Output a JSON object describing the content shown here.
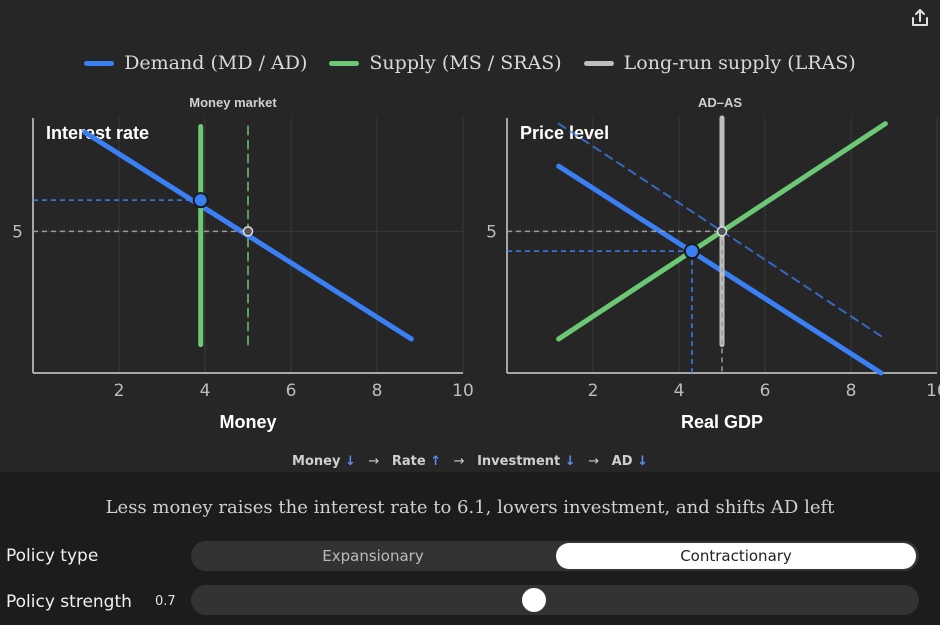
{
  "legend": [
    {
      "label": "Demand (MD / AD)",
      "color": "#3b7ff5"
    },
    {
      "label": "Supply (MS / SRAS)",
      "color": "#6cc874"
    },
    {
      "label": "Long-run supply (LRAS)",
      "color": "#bdbdbd"
    }
  ],
  "chart_data": [
    {
      "type": "line",
      "title": "Money market",
      "ylabel": "Interest rate",
      "xlabel": "Money",
      "xlim": [
        0,
        10
      ],
      "ylim": [
        0,
        9
      ],
      "x_ticks": [
        2,
        4,
        6,
        8,
        10
      ],
      "y_ticks": [
        5
      ],
      "grid": true,
      "series": [
        {
          "role": "demand",
          "points": [
            [
              1.2,
              8.5
            ],
            [
              8.8,
              1.2
            ]
          ],
          "style": "solid",
          "color": "#3b7ff5"
        },
        {
          "role": "supply-new",
          "points": [
            [
              3.9,
              8.7
            ],
            [
              3.9,
              1.0
            ]
          ],
          "style": "solid",
          "color": "#6cc874"
        },
        {
          "role": "supply-old",
          "points": [
            [
              5.0,
              8.7
            ],
            [
              5.0,
              1.0
            ]
          ],
          "style": "dashed",
          "color": "#6cc874"
        }
      ],
      "equilibria": [
        {
          "x": 3.9,
          "y": 6.1,
          "kind": "new"
        },
        {
          "x": 5.0,
          "y": 5.0,
          "kind": "old"
        }
      ]
    },
    {
      "type": "line",
      "title": "AD–AS",
      "ylabel": "Price level",
      "xlabel": "Real GDP",
      "xlim": [
        0,
        10
      ],
      "ylim": [
        0,
        9
      ],
      "x_ticks": [
        2,
        4,
        6,
        8,
        10
      ],
      "y_ticks": [
        5
      ],
      "grid": true,
      "series": [
        {
          "role": "ad-new",
          "points": [
            [
              1.2,
              7.3
            ],
            [
              8.7,
              0
            ]
          ],
          "style": "solid",
          "color": "#3b7ff5"
        },
        {
          "role": "ad-old",
          "points": [
            [
              1.2,
              8.8
            ],
            [
              8.8,
              1.2
            ]
          ],
          "style": "dashed",
          "color": "#3b7ff5"
        },
        {
          "role": "sras",
          "points": [
            [
              1.2,
              1.2
            ],
            [
              8.8,
              8.8
            ]
          ],
          "style": "solid",
          "color": "#6cc874"
        },
        {
          "role": "lras",
          "points": [
            [
              5.0,
              9.0
            ],
            [
              5.0,
              1.0
            ]
          ],
          "style": "solid",
          "color": "#bdbdbd"
        }
      ],
      "equilibria": [
        {
          "x": 4.3,
          "y": 4.3,
          "kind": "new"
        },
        {
          "x": 5.0,
          "y": 5.0,
          "kind": "old"
        }
      ]
    }
  ],
  "chain": [
    {
      "label": "Money",
      "arrow": "↓"
    },
    {
      "label": "Rate",
      "arrow": "↑"
    },
    {
      "label": "Investment",
      "arrow": "↓"
    },
    {
      "label": "AD",
      "arrow": "↓"
    }
  ],
  "chain_separator": "→",
  "caption": "Less money raises the interest rate to 6.1, lowers investment, and shifts AD left",
  "controls": {
    "policy_type_label": "Policy type",
    "options": [
      "Expansionary",
      "Contractionary"
    ],
    "selected": "Contractionary",
    "strength_label": "Policy strength",
    "strength_value": "0.7",
    "strength_fraction": 0.47
  }
}
